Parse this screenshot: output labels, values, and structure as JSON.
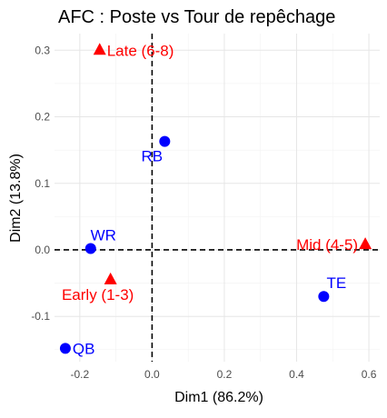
{
  "chart_data": {
    "type": "scatter",
    "title": "AFC : Poste vs Tour de repêchage",
    "xlabel": "Dim1 (86.2%)",
    "ylabel": "Dim2 (13.8%)",
    "xlim": [
      -0.27,
      0.63
    ],
    "ylim": [
      -0.168,
      0.325
    ],
    "x_ticks": [
      -0.2,
      0.0,
      0.2,
      0.4,
      0.6
    ],
    "x_tick_labels": [
      "-0.2",
      "0.0",
      "0.2",
      "0.4",
      "0.6"
    ],
    "y_ticks": [
      -0.1,
      0.0,
      0.1,
      0.2,
      0.3
    ],
    "y_tick_labels": [
      "-0.1",
      "0.0",
      "0.1",
      "0.2",
      "0.3"
    ],
    "grid": true,
    "reference_lines": {
      "x": 0,
      "y": 0,
      "style": "dashed"
    },
    "series": [
      {
        "color": "#0000ff",
        "marker": "circle",
        "points": [
          {
            "label": "WR",
            "x": -0.17,
            "y": 0.002,
            "label_side": "above"
          },
          {
            "label": "RB",
            "x": 0.035,
            "y": 0.163,
            "label_side": "below-left"
          },
          {
            "label": "TE",
            "x": 0.475,
            "y": -0.07,
            "label_side": "above"
          },
          {
            "label": "QB",
            "x": -0.24,
            "y": -0.148,
            "label_side": "right"
          }
        ]
      },
      {
        "color": "#ff0000",
        "marker": "triangle",
        "points": [
          {
            "label": "Late (6-8)",
            "x": -0.145,
            "y": 0.3,
            "label_side": "right"
          },
          {
            "label": "Mid (4-5)",
            "x": 0.59,
            "y": 0.008,
            "label_side": "left"
          },
          {
            "label": "Early (1-3)",
            "x": -0.115,
            "y": -0.045,
            "label_side": "below-left"
          }
        ]
      }
    ]
  }
}
